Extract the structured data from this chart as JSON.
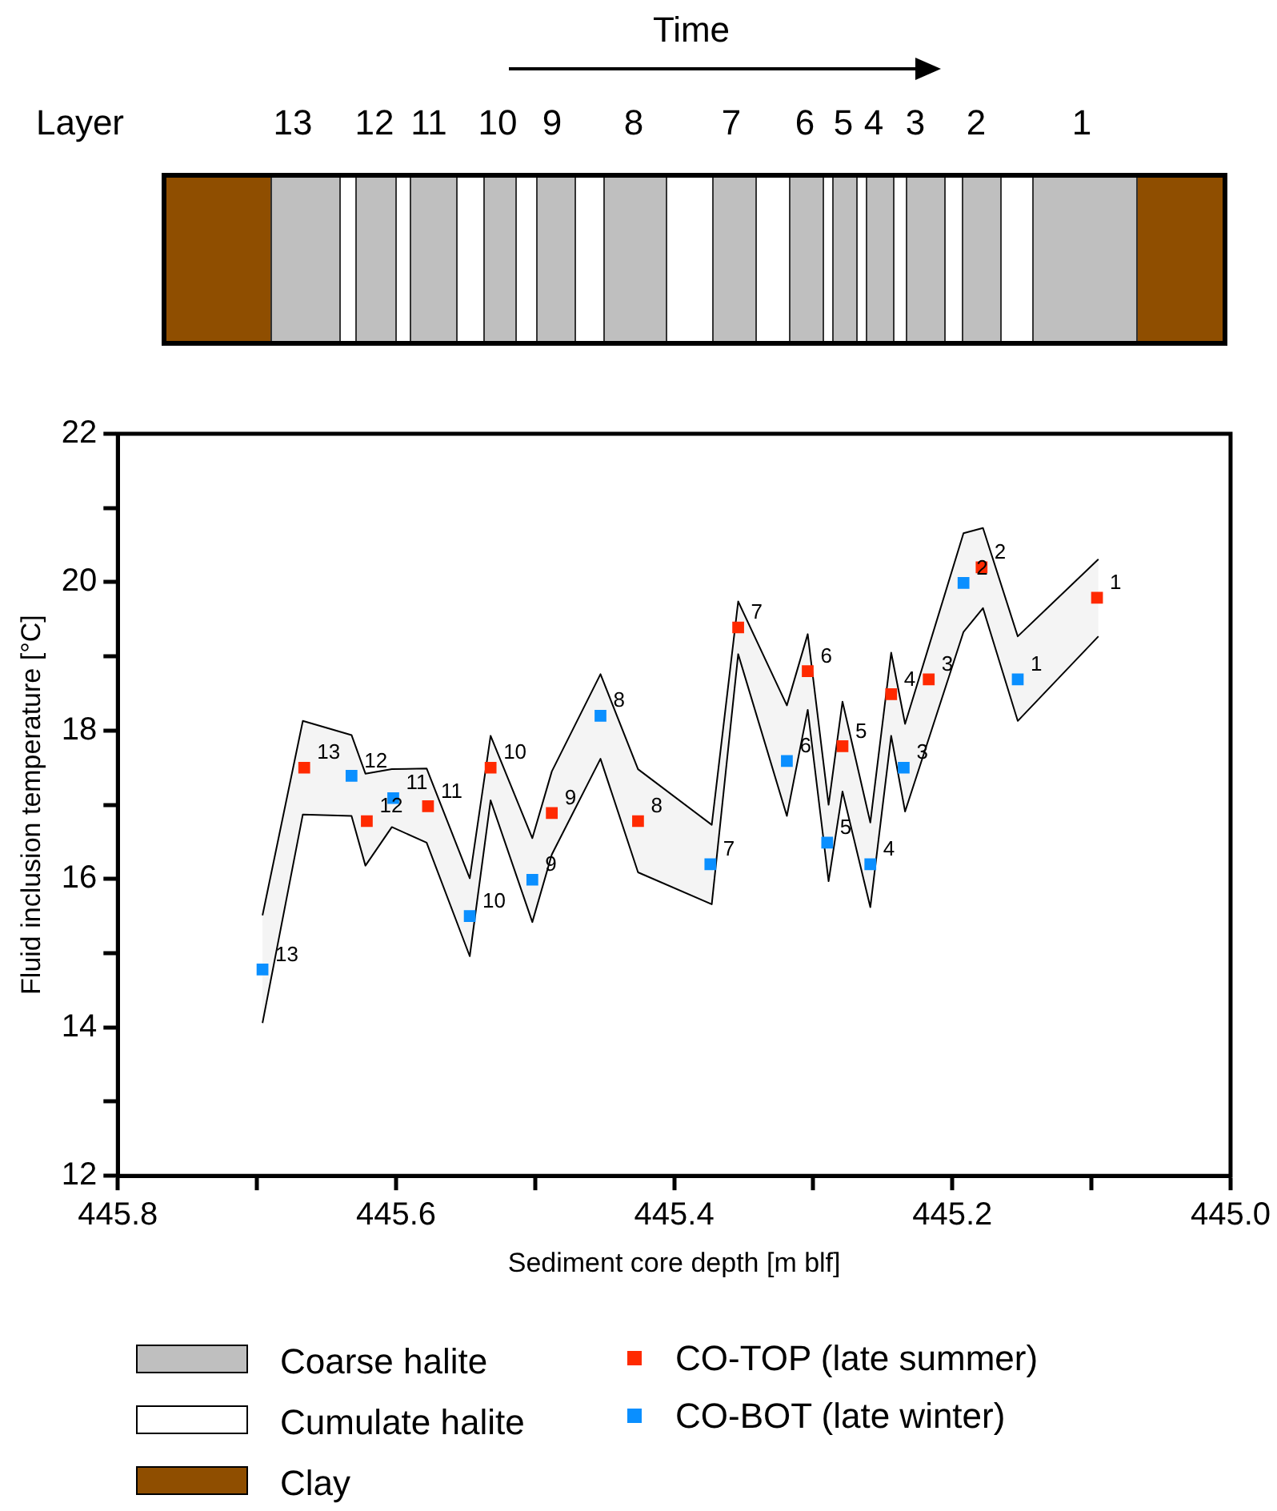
{
  "chart_data": {
    "type": "scatter",
    "xlabel": "Sediment core depth [m blf]",
    "ylabel": "Fluid inclusion temperature [°C]",
    "xlim": [
      445.8,
      445.0
    ],
    "xticks": [
      {
        "value": 445.8,
        "label": "445.8"
      },
      {
        "value": 445.7,
        "label": null
      },
      {
        "value": 445.6,
        "label": "445.6"
      },
      {
        "value": 445.5,
        "label": null
      },
      {
        "value": 445.4,
        "label": "445.4"
      },
      {
        "value": 445.3,
        "label": null
      },
      {
        "value": 445.2,
        "label": "445.2"
      },
      {
        "value": 445.1,
        "label": null
      },
      {
        "value": 445,
        "label": "445.0"
      }
    ],
    "ylim": [
      12,
      22
    ],
    "yticks": [
      12,
      {
        "value": 13,
        "label": null
      },
      14,
      {
        "value": 15,
        "label": null
      },
      16,
      {
        "value": 17,
        "label": null
      },
      18,
      {
        "value": 19,
        "label": null
      },
      20,
      {
        "value": 21,
        "label": null
      },
      22
    ],
    "grid": false,
    "legend": "bottom",
    "marker": "square",
    "series": [
      {
        "type": "line",
        "color": "#f4f4f4",
        "x": [
          445.696,
          445.667,
          445.632,
          445.622,
          445.603,
          445.578,
          445.547,
          445.532,
          445.502,
          445.488,
          445.453,
          445.426,
          445.373,
          445.354,
          445.319,
          445.304,
          445.289,
          445.279,
          445.259,
          445.244,
          445.234,
          445.192,
          445.178,
          445.153,
          445.095
        ],
        "values": [
          null,
          null,
          null,
          null,
          null,
          null,
          null,
          null,
          null,
          null,
          null,
          null,
          null,
          null,
          null,
          null,
          null,
          null,
          null,
          null,
          null,
          null,
          null,
          null,
          null
        ],
        "upper": [
          15.51,
          18.13,
          17.94,
          17.42,
          17.48,
          17.49,
          16.01,
          17.93,
          16.55,
          17.45,
          18.76,
          17.48,
          16.73,
          19.74,
          18.34,
          19.3,
          17.0,
          18.39,
          16.76,
          19.05,
          18.09,
          20.66,
          20.73,
          19.27,
          20.31
        ],
        "lower": [
          14.06,
          16.87,
          16.85,
          16.18,
          16.7,
          16.49,
          14.96,
          17.06,
          15.42,
          16.33,
          17.62,
          16.09,
          15.66,
          19.03,
          16.85,
          18.28,
          15.97,
          17.18,
          15.62,
          17.93,
          16.91,
          19.33,
          19.65,
          18.13,
          19.27
        ]
      },
      {
        "type": "line",
        "color": "#000000",
        "marker": "none",
        "x": [
          445.696,
          445.667,
          445.632,
          445.622,
          445.603,
          445.578,
          445.547,
          445.532,
          445.502,
          445.488,
          445.453,
          445.426,
          445.373,
          445.354,
          445.319,
          445.304,
          445.289,
          445.279,
          445.259,
          445.244,
          445.234,
          445.192,
          445.178,
          445.153,
          445.095
        ],
        "values": [
          15.51,
          18.13,
          17.94,
          17.42,
          17.48,
          17.49,
          16.01,
          17.93,
          16.55,
          17.45,
          18.76,
          17.48,
          16.73,
          19.74,
          18.34,
          19.3,
          17.0,
          18.39,
          16.76,
          19.05,
          18.09,
          20.66,
          20.73,
          19.27,
          20.31
        ]
      },
      {
        "type": "line",
        "color": "#000000",
        "marker": "none",
        "x": [
          445.696,
          445.667,
          445.632,
          445.622,
          445.603,
          445.578,
          445.547,
          445.532,
          445.502,
          445.488,
          445.453,
          445.426,
          445.373,
          445.354,
          445.319,
          445.304,
          445.289,
          445.279,
          445.259,
          445.244,
          445.234,
          445.192,
          445.178,
          445.153,
          445.095
        ],
        "values": [
          14.06,
          16.87,
          16.85,
          16.18,
          16.7,
          16.49,
          14.96,
          17.06,
          15.42,
          16.33,
          17.62,
          16.09,
          15.66,
          19.03,
          16.85,
          18.28,
          15.97,
          17.18,
          15.62,
          17.93,
          16.91,
          19.33,
          19.65,
          18.13,
          19.27
        ]
      },
      {
        "type": "scatter",
        "name": "CO-TOP (late summer)",
        "color": "#ff2a00",
        "x": [
          445.666,
          445.621,
          445.577,
          445.532,
          445.488,
          445.426,
          445.354,
          445.304,
          445.279,
          445.244,
          445.217,
          445.179,
          445.096
        ],
        "values": [
          17.5,
          16.78,
          16.98,
          17.5,
          16.89,
          16.78,
          19.39,
          18.8,
          17.79,
          18.49,
          18.69,
          20.2,
          19.79
        ]
      },
      {
        "type": "scatter",
        "name": "CO-BOT (late winter)",
        "color": "#0a8fff",
        "x": [
          445.696,
          445.632,
          445.602,
          445.547,
          445.502,
          445.453,
          445.374,
          445.319,
          445.29,
          445.259,
          445.235,
          445.192,
          445.153
        ],
        "values": [
          14.78,
          17.39,
          17.09,
          15.5,
          15.99,
          18.2,
          16.2,
          17.59,
          16.49,
          16.2,
          17.5,
          19.99,
          18.69
        ]
      }
    ],
    "annotations": [
      "Time",
      "Layer",
      "13",
      "12",
      "11",
      "10",
      "9",
      "8",
      "7",
      "6",
      "5",
      "4",
      "3",
      "2",
      "1",
      "Coarse halite",
      "Cumulate halite",
      "Clay",
      {
        "text": "13",
        "x": 445.666,
        "y": 17.5
      },
      {
        "text": "12",
        "x": 445.621,
        "y": 16.78
      },
      {
        "text": "11",
        "x": 445.577,
        "y": 16.98
      },
      {
        "text": "10",
        "x": 445.532,
        "y": 17.5
      },
      {
        "text": "9",
        "x": 445.488,
        "y": 16.89
      },
      {
        "text": "8",
        "x": 445.426,
        "y": 16.78
      },
      {
        "text": "7",
        "x": 445.354,
        "y": 19.39
      },
      {
        "text": "6",
        "x": 445.304,
        "y": 18.8
      },
      {
        "text": "5",
        "x": 445.279,
        "y": 17.79
      },
      {
        "text": "4",
        "x": 445.244,
        "y": 18.49
      },
      {
        "text": "3",
        "x": 445.217,
        "y": 18.69
      },
      {
        "text": "2",
        "x": 445.179,
        "y": 20.2
      },
      {
        "text": "1",
        "x": 445.096,
        "y": 19.79
      },
      {
        "text": "13",
        "x": 445.696,
        "y": 14.78
      },
      {
        "text": "12",
        "x": 445.632,
        "y": 17.39
      },
      {
        "text": "11",
        "x": 445.602,
        "y": 17.09
      },
      {
        "text": "10",
        "x": 445.547,
        "y": 15.5
      },
      {
        "text": "9",
        "x": 445.502,
        "y": 15.99
      },
      {
        "text": "8",
        "x": 445.453,
        "y": 18.2
      },
      {
        "text": "7",
        "x": 445.374,
        "y": 16.2
      },
      {
        "text": "6",
        "x": 445.319,
        "y": 17.59
      },
      {
        "text": "5",
        "x": 445.29,
        "y": 16.49
      },
      {
        "text": "4",
        "x": 445.259,
        "y": 16.2
      },
      {
        "text": "3",
        "x": 445.235,
        "y": 17.5
      },
      {
        "text": "2",
        "x": 445.192,
        "y": 19.99
      },
      {
        "text": "1",
        "x": 445.153,
        "y": 18.69
      }
    ]
  }
}
